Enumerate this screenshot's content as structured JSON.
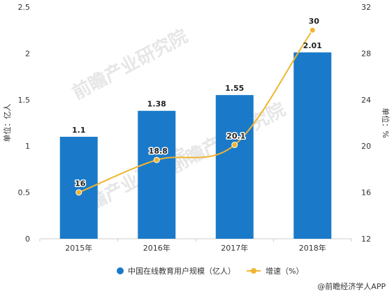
{
  "chart_data": {
    "type": "bar",
    "categories": [
      "2015年",
      "2016年",
      "2017年",
      "2018年"
    ],
    "series": [
      {
        "name": "中国在线教育用户规模（亿人）",
        "kind": "bar",
        "axis": "left",
        "values": [
          1.1,
          1.38,
          1.55,
          2.01
        ],
        "color": "#1a7ac9"
      },
      {
        "name": "增速（%）",
        "kind": "line",
        "axis": "right",
        "values": [
          16,
          18.8,
          20.1,
          30
        ],
        "color": "#f0b530"
      }
    ],
    "y_left": {
      "label": "单位：亿人",
      "ticks": [
        "0",
        "0.5",
        "1",
        "1.5",
        "2",
        "2.5"
      ],
      "lim": [
        0,
        2.5
      ]
    },
    "y_right": {
      "label": "单位：%",
      "ticks": [
        "12",
        "16",
        "20",
        "24",
        "28",
        "32"
      ],
      "lim": [
        12,
        32
      ]
    },
    "grid": false,
    "legend": "bottom"
  },
  "watermark": "前瞻产业研究院",
  "source": "@前瞻经济学人APP"
}
